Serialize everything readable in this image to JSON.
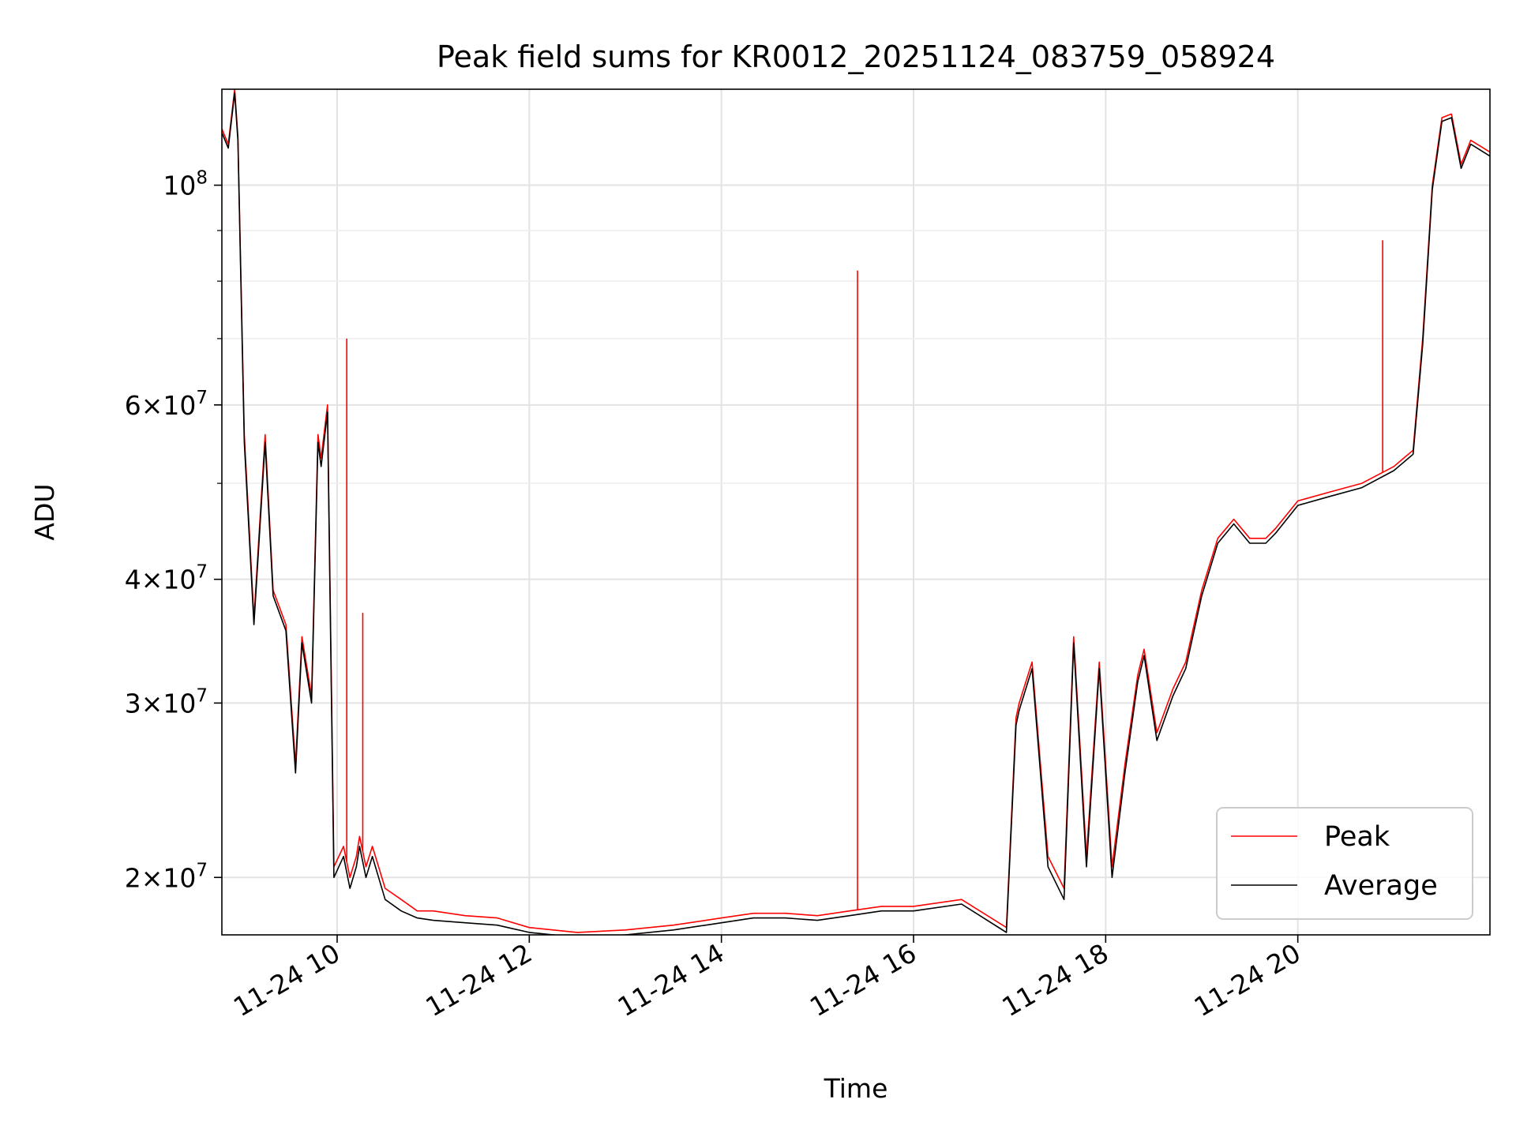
{
  "chart_data": {
    "type": "line",
    "title": "Peak field sums for KR0012_20251124_083759_058924",
    "xlabel": "Time",
    "ylabel": "ADU",
    "yscale": "log",
    "xlim": [
      "2025-11-24 08:48",
      "2025-11-24 22:00"
    ],
    "ylim": [
      17500000,
      125000000
    ],
    "grid": true,
    "legend_position": "lower-right",
    "x_ticks": [
      {
        "value": "2025-11-24 10:00",
        "label": "11-24 10"
      },
      {
        "value": "2025-11-24 12:00",
        "label": "11-24 12"
      },
      {
        "value": "2025-11-24 14:00",
        "label": "11-24 14"
      },
      {
        "value": "2025-11-24 16:00",
        "label": "11-24 16"
      },
      {
        "value": "2025-11-24 18:00",
        "label": "11-24 18"
      },
      {
        "value": "2025-11-24 20:00",
        "label": "11-24 20"
      }
    ],
    "y_ticks": [
      {
        "value": 20000000,
        "mantissa": "2",
        "exponent": "7"
      },
      {
        "value": 30000000,
        "mantissa": "3",
        "exponent": "7"
      },
      {
        "value": 40000000,
        "mantissa": "4",
        "exponent": "7"
      },
      {
        "value": 60000000,
        "mantissa": "6",
        "exponent": "7"
      },
      {
        "value": 100000000,
        "mantissa": "",
        "exponent": "8"
      }
    ],
    "y_minor_ticks": [
      50000000,
      70000000,
      80000000,
      90000000
    ],
    "x": [
      "08:48",
      "08:52",
      "08:56",
      "08:58",
      "09:02",
      "09:08",
      "09:15",
      "09:20",
      "09:28",
      "09:34",
      "09:38",
      "09:44",
      "09:48",
      "09:50",
      "09:54",
      "09:58",
      "10:04",
      "10:08",
      "10:12",
      "10:14",
      "10:18",
      "10:22",
      "10:30",
      "10:40",
      "10:50",
      "11:00",
      "11:20",
      "11:40",
      "12:00",
      "12:30",
      "13:00",
      "13:30",
      "14:00",
      "14:20",
      "14:40",
      "15:00",
      "15:20",
      "15:40",
      "16:00",
      "16:30",
      "16:58",
      "17:04",
      "17:06",
      "17:14",
      "17:24",
      "17:34",
      "17:40",
      "17:48",
      "17:56",
      "18:04",
      "18:12",
      "18:20",
      "18:24",
      "18:32",
      "18:42",
      "18:50",
      "19:00",
      "19:10",
      "19:20",
      "19:30",
      "19:40",
      "19:46",
      "20:00",
      "20:20",
      "20:40",
      "21:00",
      "21:12",
      "21:18",
      "21:24",
      "21:30",
      "21:36",
      "21:42",
      "21:48",
      "22:00"
    ],
    "series": [
      {
        "name": "Peak",
        "color": "#ff0000",
        "values": [
          114000000,
          110000000,
          125000000,
          112000000,
          56000000,
          36500000,
          56000000,
          39000000,
          36000000,
          26000000,
          35000000,
          30500000,
          56000000,
          53000000,
          60000000,
          20500000,
          21500000,
          20000000,
          21000000,
          22000000,
          20500000,
          21500000,
          19500000,
          19000000,
          18500000,
          18500000,
          18300000,
          18200000,
          17800000,
          17600000,
          17700000,
          17900000,
          18200000,
          18400000,
          18400000,
          18300000,
          18500000,
          18700000,
          18700000,
          19000000,
          17800000,
          29000000,
          30000000,
          33000000,
          21000000,
          19500000,
          35000000,
          21000000,
          33000000,
          20500000,
          26000000,
          32000000,
          34000000,
          28000000,
          31000000,
          33000000,
          39000000,
          44000000,
          46000000,
          44000000,
          44000000,
          45000000,
          48000000,
          49000000,
          50000000,
          52000000,
          54000000,
          70000000,
          100000000,
          117000000,
          118000000,
          105000000,
          111000000,
          108000000
        ]
      },
      {
        "name": "Average",
        "color": "#000000",
        "values": [
          113000000,
          109000000,
          124000000,
          111000000,
          55000000,
          36000000,
          55000000,
          38500000,
          35500000,
          25500000,
          34500000,
          30000000,
          55000000,
          52000000,
          59000000,
          20000000,
          21000000,
          19500000,
          20500000,
          21500000,
          20000000,
          21000000,
          19000000,
          18500000,
          18200000,
          18100000,
          18000000,
          17900000,
          17600000,
          17400000,
          17500000,
          17700000,
          18000000,
          18200000,
          18200000,
          18100000,
          18300000,
          18500000,
          18500000,
          18800000,
          17600000,
          28500000,
          29500000,
          32500000,
          20500000,
          19000000,
          34500000,
          20500000,
          32500000,
          20000000,
          25500000,
          31500000,
          33500000,
          27500000,
          30500000,
          32500000,
          38500000,
          43500000,
          45500000,
          43500000,
          43500000,
          44500000,
          47500000,
          48500000,
          49500000,
          51500000,
          53500000,
          69000000,
          99000000,
          116000000,
          117000000,
          104000000,
          110000000,
          107000000
        ]
      }
    ],
    "spikes": [
      {
        "x": "15:25",
        "series": "Peak",
        "value": 82000000
      },
      {
        "x": "20:53",
        "series": "Peak",
        "value": 88000000
      },
      {
        "x": "10:06",
        "series": "Peak",
        "value": 70000000
      },
      {
        "x": "10:16",
        "series": "Peak",
        "value": 37000000
      }
    ]
  }
}
